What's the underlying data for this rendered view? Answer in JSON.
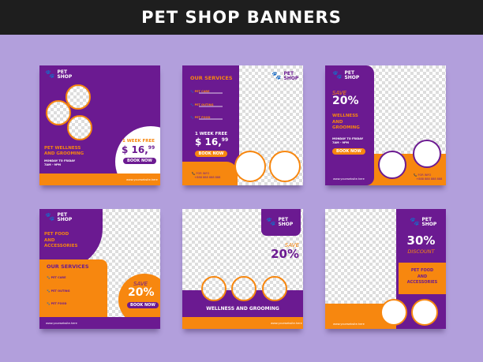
{
  "title": "PET SHOP BANNERS",
  "colors": {
    "purple": "#6b1a91",
    "orange": "#f7870f",
    "background": "#b29fdc"
  },
  "logo": {
    "icon": "paw-icon",
    "line1": "PET",
    "line2": "SHOP"
  },
  "website": "www.yourwebsite.here",
  "phone": "+888 888 888 888",
  "for_info": "FOR INFO",
  "book_now": "BOOK NOW",
  "banner1": {
    "heading1": "PET WELLNESS",
    "heading2": "AND GROOMING",
    "hours1": "MONDAY TO FRIDAY",
    "hours2": "7AM - 9PM",
    "offer": "1 WEEK FREE",
    "price": "$ 16,",
    "cents": "99"
  },
  "banner2": {
    "services_title": "OUR SERVICES",
    "services": [
      "PET CARE",
      "PET OUTING",
      "PET FOOD"
    ],
    "offer": "1 WEEK FREE",
    "price": "$ 16,",
    "cents": "99"
  },
  "banner3": {
    "save": "SAVE",
    "percent": "20%",
    "heading": [
      "WELLNESS",
      "AND",
      "GROOMING"
    ],
    "hours1": "MONDAY TO FRIDAY",
    "hours2": "7AM - 9PM"
  },
  "banner4": {
    "heading": [
      "PET FOOD",
      "AND",
      "ACCESSORIES"
    ],
    "services_title": "OUR SERVICES",
    "services": [
      "PET CARE",
      "PET OUTING",
      "PET FOOD"
    ],
    "save": "SAVE",
    "percent": "20%"
  },
  "banner5": {
    "save": "SAVE",
    "percent": "20%",
    "heading": "WELLNESS AND GROOMING"
  },
  "banner6": {
    "percent": "30%",
    "discount": "DISCOUNT",
    "heading": [
      "PET FOOD",
      "AND",
      "ACCESSORIES"
    ]
  }
}
